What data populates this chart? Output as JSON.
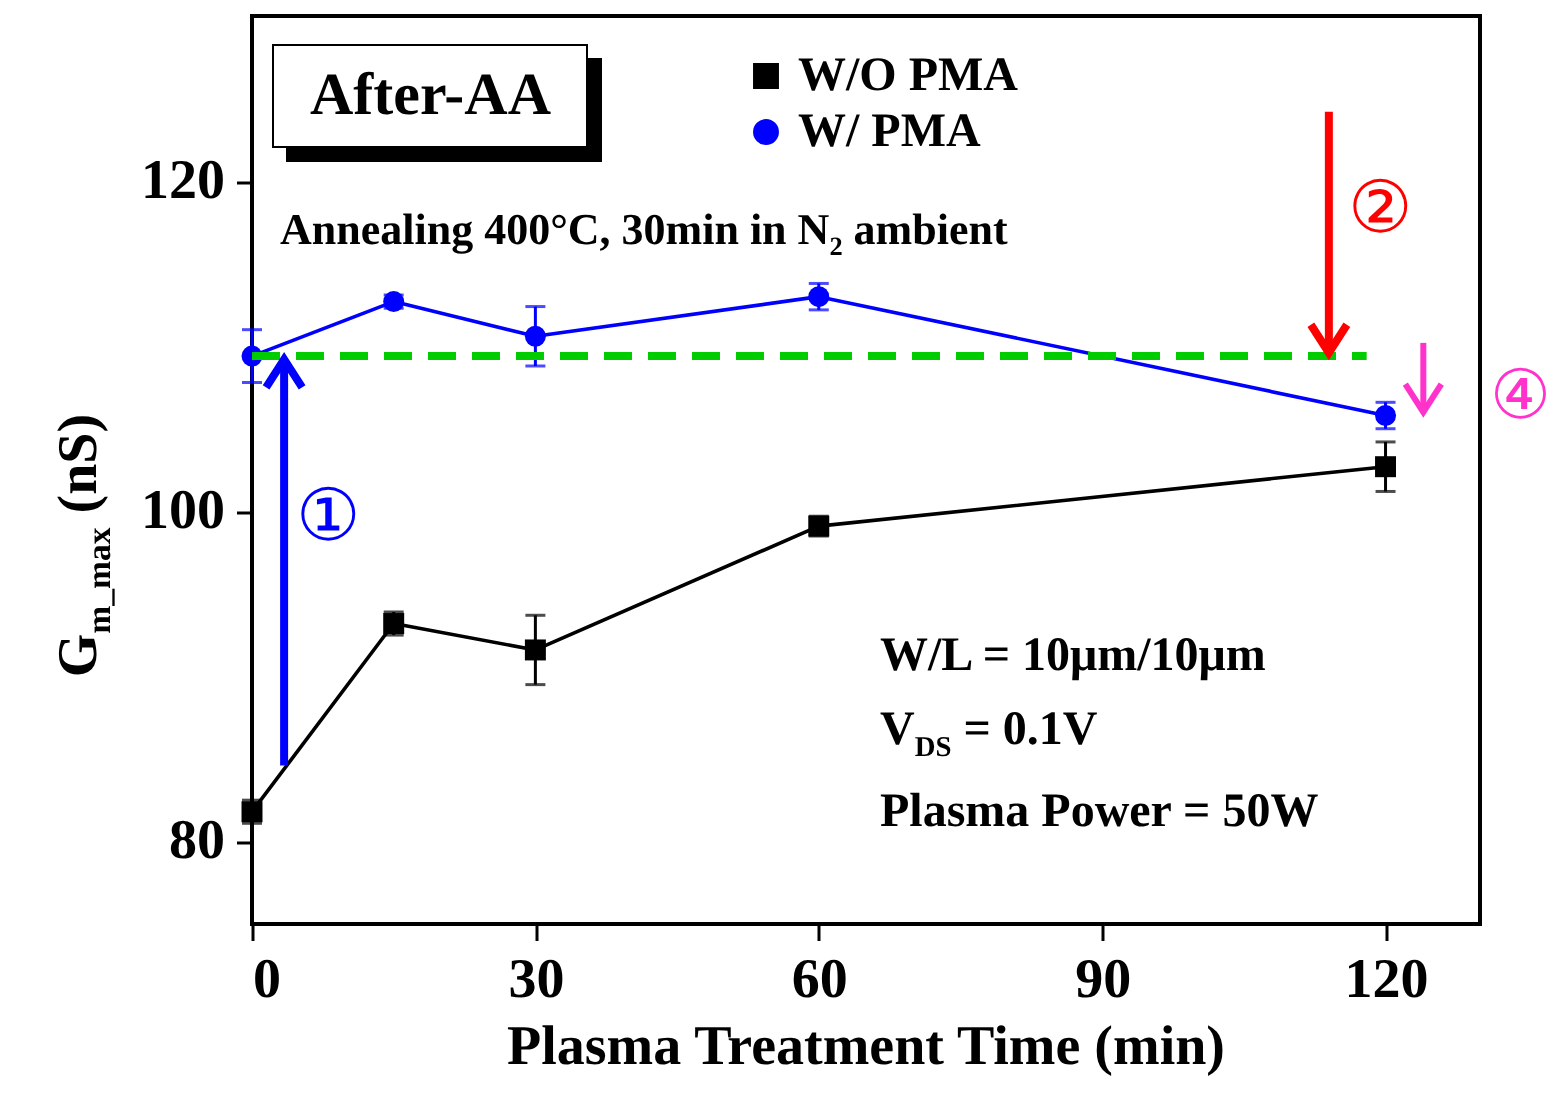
{
  "chart_data": {
    "type": "line",
    "xlabel": "Plasma Treatment Time (min)",
    "ylabel": "G$_{m_max}$ (nS)",
    "x": [
      0,
      15,
      30,
      60,
      120
    ],
    "xlim": [
      0,
      130
    ],
    "xticks": [
      0,
      30,
      60,
      90,
      120
    ],
    "ylim": [
      75,
      130
    ],
    "yticks": [
      80,
      100,
      120
    ],
    "series": [
      {
        "name": "W/O PMA",
        "color": "#000000",
        "marker": "square",
        "values": [
          81.8,
          93.2,
          91.6,
          99.1,
          102.7
        ],
        "errors": [
          0.7,
          0.7,
          2.1,
          0.6,
          1.5
        ]
      },
      {
        "name": "W/ PMA",
        "color": "#0000ff",
        "marker": "circle",
        "values": [
          109.4,
          112.7,
          110.6,
          113.0,
          105.8
        ],
        "errors": [
          1.6,
          0.4,
          1.8,
          0.8,
          0.8
        ]
      },
      {
        "type": "line",
        "color": "#00cc00",
        "line_style": "dashed",
        "marker": "none",
        "x": [
          0,
          118
        ],
        "values": [
          109.4,
          109.4
        ]
      }
    ],
    "legend": "top",
    "grid": false,
    "annotations": [
      "After-AA",
      "Annealing 400°C, 30min in N$_{2}$ ambient",
      "W/L = 10μm/10μm",
      "V$_{DS}$ = 0.1V",
      "Plasma Power = 50W",
      "①",
      "②",
      "④"
    ]
  }
}
